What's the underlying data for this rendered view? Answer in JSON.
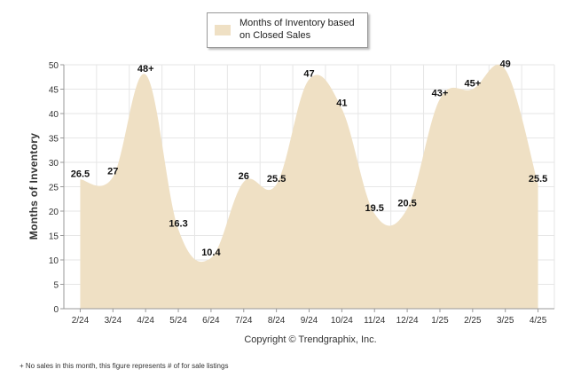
{
  "chart_data": {
    "type": "area",
    "categories": [
      "2/24",
      "3/24",
      "4/24",
      "5/24",
      "6/24",
      "7/24",
      "8/24",
      "9/24",
      "10/24",
      "11/24",
      "12/24",
      "1/25",
      "2/25",
      "3/25",
      "4/25"
    ],
    "series": [
      {
        "name": "Months of Inventory based on Closed Sales",
        "values": [
          26.5,
          27,
          48,
          16.3,
          10.4,
          26,
          25.5,
          47,
          41,
          19.5,
          20.5,
          43,
          45,
          49,
          25.5
        ],
        "labels": [
          "26.5",
          "27",
          "48+",
          "16.3",
          "10.4",
          "26",
          "25.5",
          "47",
          "41",
          "19.5",
          "20.5",
          "43+",
          "45+",
          "49",
          "25.5"
        ]
      }
    ],
    "ylabel": "Months of Inventory",
    "xlabel": "",
    "ylim": [
      0,
      50
    ],
    "yticks": [
      0,
      5,
      10,
      15,
      20,
      25,
      30,
      35,
      40,
      45,
      50
    ],
    "grid": true,
    "legend": "top-center",
    "colors": {
      "fill": "#efe0c4",
      "grid": "#e6e6e6",
      "text": "#333333"
    }
  },
  "legend_label": "Months of Inventory based on Closed Sales",
  "copyright": "Copyright © Trendgraphix, Inc.",
  "footnote": "+  No sales in this month, this figure represents # of for sale listings"
}
